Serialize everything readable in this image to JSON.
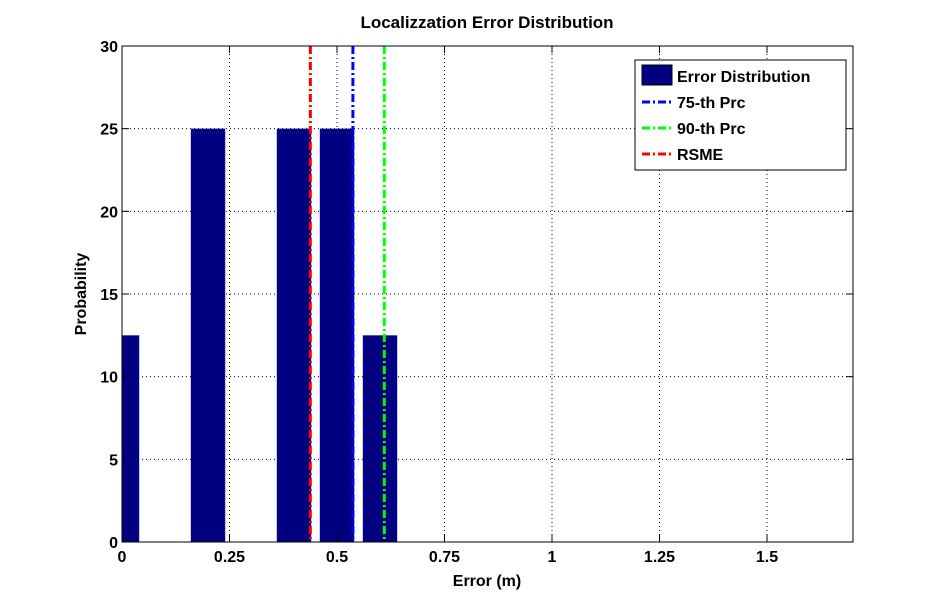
{
  "chart_data": {
    "type": "bar",
    "title": "Localizzation Error Distribution",
    "xlabel": "Error (m)",
    "ylabel": "Probability",
    "xlim": [
      0,
      1.7
    ],
    "ylim": [
      0,
      30
    ],
    "xticks": [
      0,
      0.25,
      0.5,
      0.75,
      1,
      1.25,
      1.5
    ],
    "xtick_labels": [
      "0",
      "0.25",
      "0.5",
      "0.75",
      "1",
      "1.25",
      "1.5"
    ],
    "yticks": [
      0,
      5,
      10,
      15,
      20,
      25,
      30
    ],
    "ytick_labels": [
      "0",
      "5",
      "10",
      "15",
      "20",
      "25",
      "30"
    ],
    "grid": true,
    "bars": [
      {
        "x": 0.02,
        "width": 0.04,
        "value": 12.5
      },
      {
        "x": 0.2,
        "width": 0.08,
        "value": 25
      },
      {
        "x": 0.4,
        "width": 0.08,
        "value": 25
      },
      {
        "x": 0.5,
        "width": 0.08,
        "value": 25
      },
      {
        "x": 0.6,
        "width": 0.08,
        "value": 12.5
      }
    ],
    "vlines": [
      {
        "name": "75-th Prc",
        "x": 0.537,
        "color": "#0000ff"
      },
      {
        "name": "90-th Prc",
        "x": 0.61,
        "color": "#00ff00"
      },
      {
        "name": "RSME",
        "x": 0.438,
        "color": "#ff0000"
      }
    ],
    "bar_color": "#000080",
    "legend": {
      "placement": "top-right",
      "entries": [
        "Error Distribution",
        "75-th Prc",
        "90-th Prc",
        "RSME"
      ]
    }
  }
}
